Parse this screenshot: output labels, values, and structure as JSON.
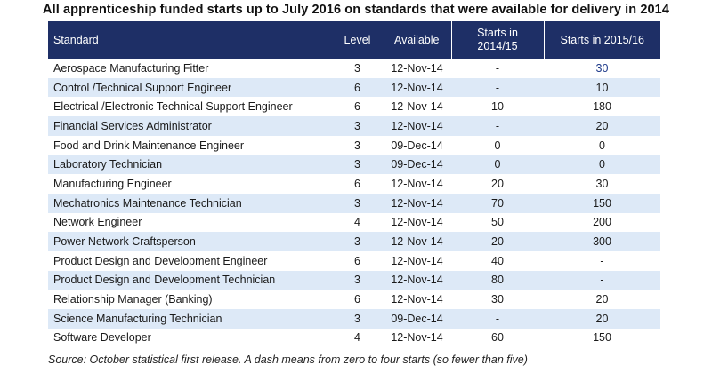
{
  "title": "All apprenticeship funded starts up to July 2016 on  standards that were available for delivery in 2014",
  "headers": {
    "standard": "Standard",
    "level": "Level",
    "available": "Available",
    "starts_1415_line1": "Starts in",
    "starts_1415_line2": "2014/15",
    "starts_1516": "Starts in 2015/16"
  },
  "rows": [
    {
      "standard": "Aerospace Manufacturing Fitter",
      "level": "3",
      "available": "12-Nov-14",
      "s1415": "-",
      "s1516": "30"
    },
    {
      "standard": "Control /Technical Support Engineer",
      "level": "6",
      "available": "12-Nov-14",
      "s1415": "-",
      "s1516": "10"
    },
    {
      "standard": "Electrical /Electronic Technical Support Engineer",
      "level": "6",
      "available": "12-Nov-14",
      "s1415": "10",
      "s1516": "180"
    },
    {
      "standard": "Financial Services Administrator",
      "level": "3",
      "available": "12-Nov-14",
      "s1415": "-",
      "s1516": "20"
    },
    {
      "standard": "Food and Drink Maintenance Engineer",
      "level": "3",
      "available": "09-Dec-14",
      "s1415": "0",
      "s1516": "0"
    },
    {
      "standard": "Laboratory Technician",
      "level": "3",
      "available": "09-Dec-14",
      "s1415": "0",
      "s1516": "0"
    },
    {
      "standard": "Manufacturing Engineer",
      "level": "6",
      "available": "12-Nov-14",
      "s1415": "20",
      "s1516": "30"
    },
    {
      "standard": "Mechatronics Maintenance Technician",
      "level": "3",
      "available": "12-Nov-14",
      "s1415": "70",
      "s1516": "150"
    },
    {
      "standard": "Network Engineer",
      "level": "4",
      "available": "12-Nov-14",
      "s1415": "50",
      "s1516": "200"
    },
    {
      "standard": "Power Network Craftsperson",
      "level": "3",
      "available": "12-Nov-14",
      "s1415": "20",
      "s1516": "300"
    },
    {
      "standard": "Product Design and Development Engineer",
      "level": "6",
      "available": "12-Nov-14",
      "s1415": "40",
      "s1516": "-"
    },
    {
      "standard": "Product Design and Development Technician",
      "level": "3",
      "available": "12-Nov-14",
      "s1415": "80",
      "s1516": "-"
    },
    {
      "standard": "Relationship Manager (Banking)",
      "level": "6",
      "available": "12-Nov-14",
      "s1415": "30",
      "s1516": "20"
    },
    {
      "standard": "Science Manufacturing Technician",
      "level": "3",
      "available": "09-Dec-14",
      "s1415": "-",
      "s1516": "20"
    },
    {
      "standard": "Software Developer",
      "level": "4",
      "available": "12-Nov-14",
      "s1415": "60",
      "s1516": "150"
    }
  ],
  "source": "Source: October statistical first release. A dash means from zero to four starts (so fewer than five)",
  "colors": {
    "header_bg": "#1e2f66",
    "stripe": "#dde9f7"
  }
}
